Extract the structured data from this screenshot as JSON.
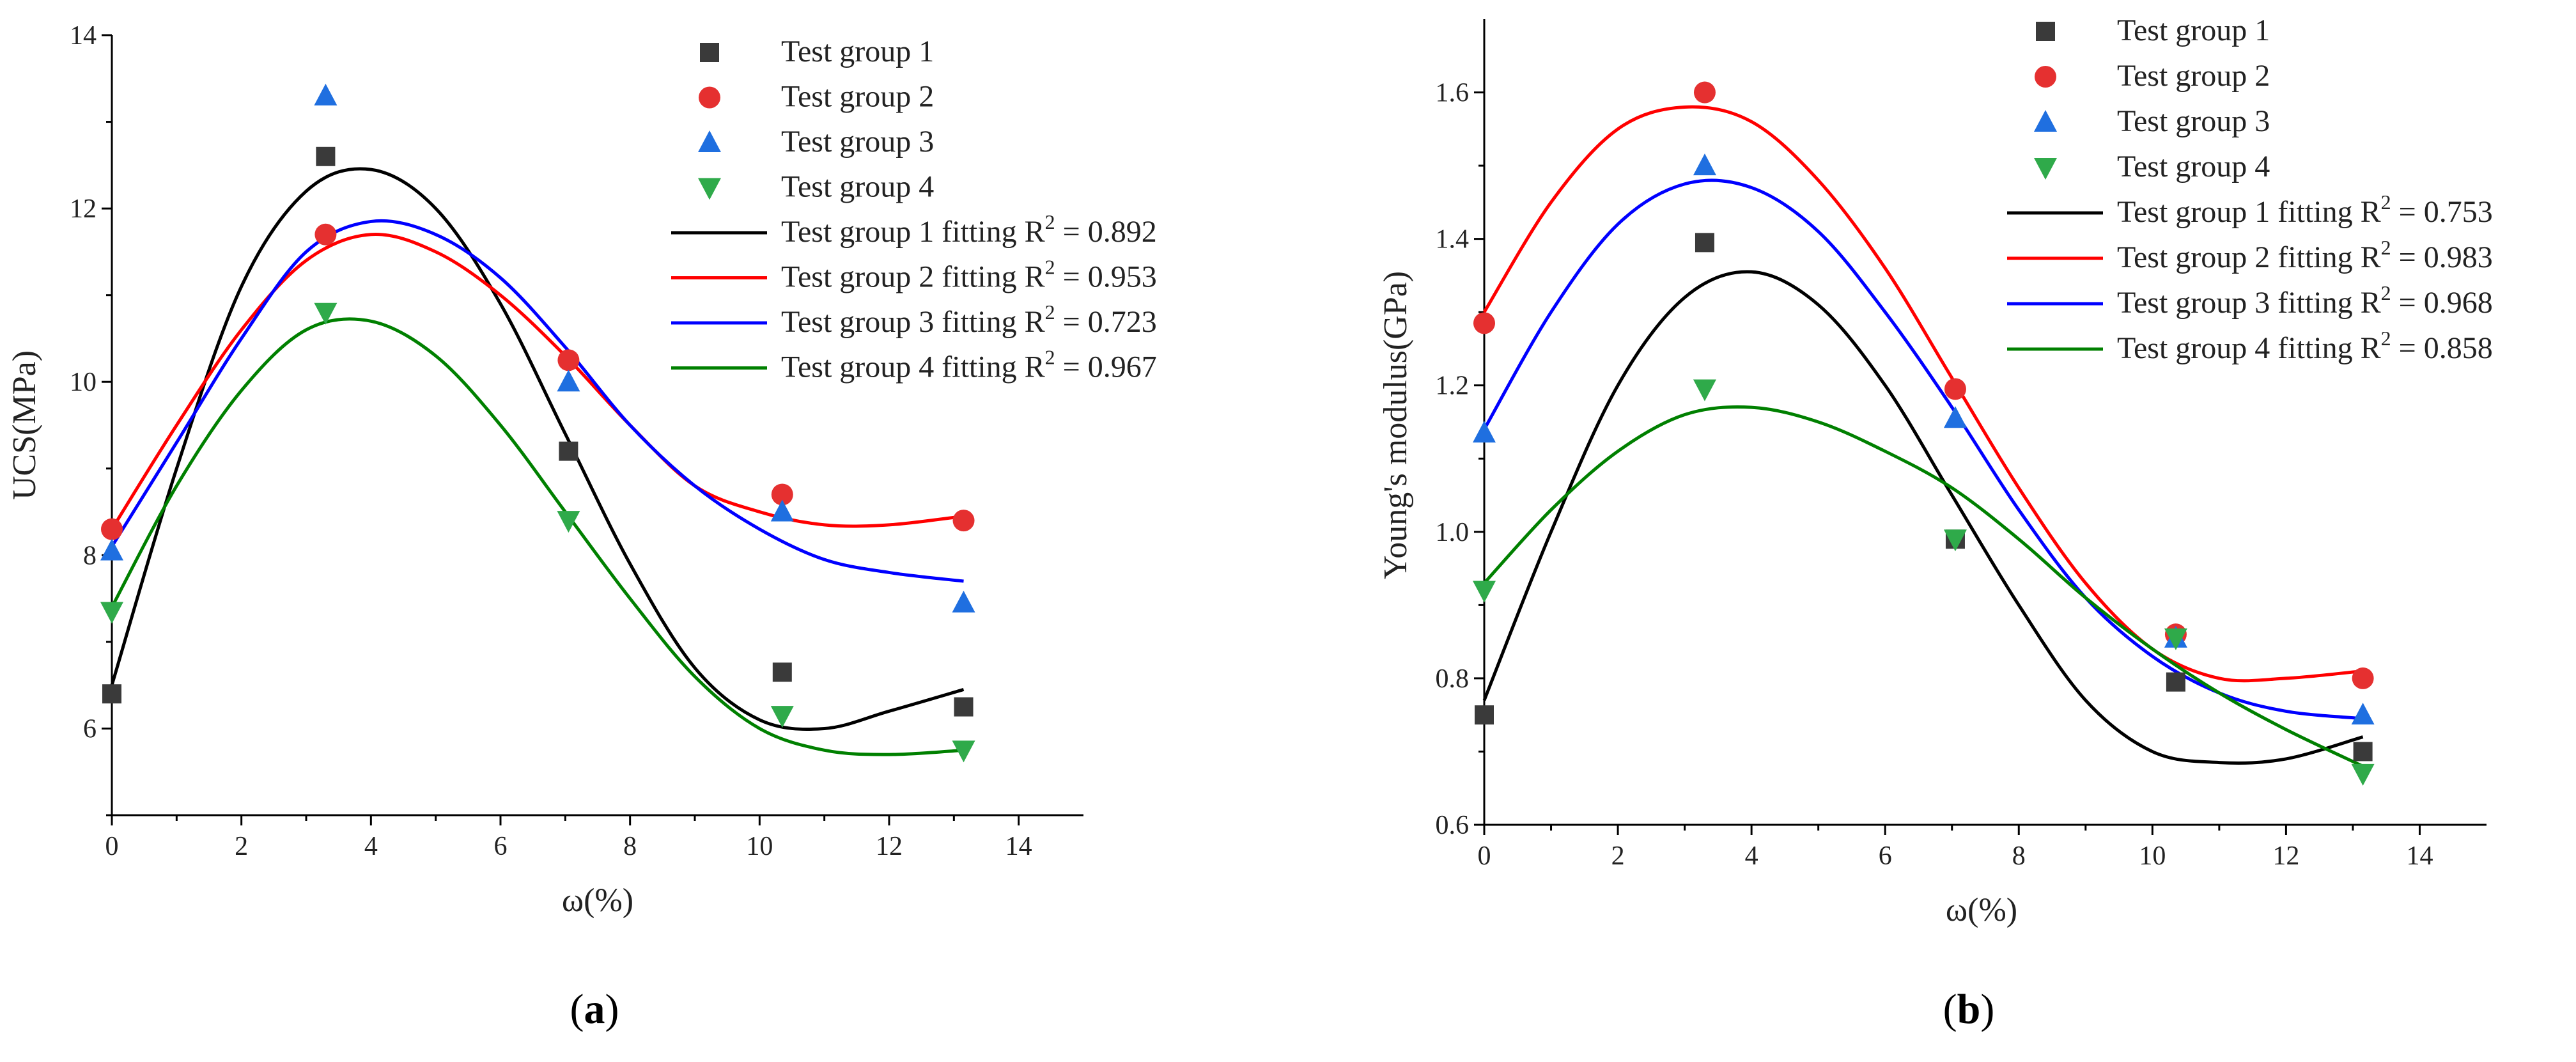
{
  "colors": {
    "g1": "#3a3a3a",
    "g2": "#e53030",
    "g3": "#1f6fe0",
    "g4": "#2faa4a",
    "fit1": "#000000",
    "fit2": "#ff0000",
    "fit3": "#0000ff",
    "fit4": "#008000"
  },
  "chart_data": [
    {
      "type": "scatter",
      "panel": "a",
      "caption_open": "(",
      "caption_letter": "a",
      "caption_close": ")",
      "xlabel": "ω(%)",
      "ylabel": "UCS(MPa)",
      "xlim": [
        0,
        15
      ],
      "ylim": [
        5,
        14
      ],
      "xticks": [
        0,
        2,
        4,
        6,
        8,
        10,
        12,
        14
      ],
      "yticks": [
        6,
        8,
        10,
        12,
        14
      ],
      "legend_position": "top-right",
      "series": [
        {
          "name": "Test group 1",
          "marker": "square",
          "color_key": "g1",
          "x": [
            0,
            3.3,
            7.05,
            10.35,
            13.15
          ],
          "y": [
            6.4,
            12.6,
            9.2,
            6.65,
            6.25
          ]
        },
        {
          "name": "Test group 2",
          "marker": "circle",
          "color_key": "g2",
          "x": [
            0,
            3.3,
            7.05,
            10.35,
            13.15
          ],
          "y": [
            8.3,
            11.7,
            10.25,
            8.7,
            8.4
          ]
        },
        {
          "name": "Test group 3",
          "marker": "triangle-up",
          "color_key": "g3",
          "x": [
            0,
            3.3,
            7.05,
            10.35,
            13.15
          ],
          "y": [
            8.05,
            13.3,
            10.0,
            8.5,
            7.45
          ]
        },
        {
          "name": "Test group 4",
          "marker": "triangle-down",
          "color_key": "g4",
          "x": [
            0,
            3.3,
            7.05,
            10.35,
            13.15
          ],
          "y": [
            7.35,
            10.8,
            8.4,
            6.15,
            5.75
          ]
        }
      ],
      "fits": [
        {
          "name_prefix": "Test group 1 fitting R",
          "name_suffix": " = 0.892",
          "r2": "0.892",
          "color_key": "fit1",
          "x": [
            0,
            1,
            2,
            3,
            4,
            5,
            6,
            7,
            8,
            9,
            10,
            11,
            12,
            13.15
          ],
          "y": [
            6.5,
            9.0,
            11.1,
            12.2,
            12.45,
            12.0,
            10.9,
            9.4,
            7.9,
            6.7,
            6.1,
            6.0,
            6.2,
            6.45
          ]
        },
        {
          "name_prefix": "Test group 2 fitting R",
          "name_suffix": " = 0.953",
          "r2": "0.953",
          "color_key": "fit2",
          "x": [
            0,
            1,
            2,
            3,
            4,
            5,
            6,
            7,
            8,
            9,
            10,
            11,
            12,
            13.15
          ],
          "y": [
            8.3,
            9.5,
            10.6,
            11.4,
            11.7,
            11.5,
            11.0,
            10.3,
            9.5,
            8.8,
            8.5,
            8.35,
            8.35,
            8.45
          ]
        },
        {
          "name_prefix": "Test group 3 fitting R",
          "name_suffix": " = 0.723",
          "r2": "0.723",
          "color_key": "fit3",
          "x": [
            0,
            1,
            2,
            3,
            4,
            5,
            6,
            7,
            8,
            9,
            10,
            11,
            12,
            13.15
          ],
          "y": [
            8.1,
            9.3,
            10.5,
            11.5,
            11.85,
            11.7,
            11.2,
            10.4,
            9.5,
            8.8,
            8.3,
            7.95,
            7.8,
            7.7
          ]
        },
        {
          "name_prefix": "Test group 4 fitting R",
          "name_suffix": " = 0.967",
          "r2": "0.967",
          "color_key": "fit4",
          "x": [
            0,
            1,
            2,
            3,
            4,
            5,
            6,
            7,
            8,
            9,
            10,
            11,
            12,
            13.15
          ],
          "y": [
            7.4,
            8.8,
            9.9,
            10.6,
            10.7,
            10.3,
            9.5,
            8.5,
            7.5,
            6.6,
            6.0,
            5.75,
            5.7,
            5.75
          ]
        }
      ]
    },
    {
      "type": "scatter",
      "panel": "b",
      "caption_open": "(",
      "caption_letter": "b",
      "caption_close": ")",
      "xlabel": "ω(%)",
      "ylabel": "Young's modulus(GPa)",
      "xlim": [
        0,
        15
      ],
      "ylim": [
        0.6,
        1.7
      ],
      "xticks": [
        0,
        2,
        4,
        6,
        8,
        10,
        12,
        14
      ],
      "yticks": [
        0.6,
        0.8,
        1.0,
        1.2,
        1.4,
        1.6
      ],
      "ytick_labels": [
        "0.6",
        "0.8",
        "1.0",
        "1.2",
        "1.4",
        "1.6"
      ],
      "legend_position": "top-right",
      "series": [
        {
          "name": "Test group 1",
          "marker": "square",
          "color_key": "g1",
          "x": [
            0,
            3.3,
            7.05,
            10.35,
            13.15
          ],
          "y": [
            0.75,
            1.395,
            0.99,
            0.795,
            0.7
          ]
        },
        {
          "name": "Test group 2",
          "marker": "circle",
          "color_key": "g2",
          "x": [
            0,
            3.3,
            7.05,
            10.35,
            13.15
          ],
          "y": [
            1.285,
            1.6,
            1.195,
            0.86,
            0.8
          ]
        },
        {
          "name": "Test group 3",
          "marker": "triangle-up",
          "color_key": "g3",
          "x": [
            0,
            3.3,
            7.05,
            10.35,
            13.15
          ],
          "y": [
            1.135,
            1.5,
            1.155,
            0.855,
            0.75
          ]
        },
        {
          "name": "Test group 4",
          "marker": "triangle-down",
          "color_key": "g4",
          "x": [
            0,
            3.3,
            7.05,
            10.35,
            13.15
          ],
          "y": [
            0.92,
            1.195,
            0.99,
            0.855,
            0.67
          ]
        }
      ],
      "fits": [
        {
          "name_prefix": "Test group 1 fitting R",
          "name_suffix": " = 0.753",
          "r2": "0.753",
          "color_key": "fit1",
          "x": [
            0,
            1,
            2,
            3,
            4,
            5,
            6,
            7,
            8,
            9,
            10,
            11,
            12,
            13.15
          ],
          "y": [
            0.77,
            1.0,
            1.2,
            1.32,
            1.355,
            1.31,
            1.2,
            1.05,
            0.9,
            0.77,
            0.7,
            0.685,
            0.69,
            0.72
          ]
        },
        {
          "name_prefix": "Test group 2 fitting R",
          "name_suffix": " = 0.983",
          "r2": "0.983",
          "color_key": "fit2",
          "x": [
            0,
            1,
            2,
            3,
            4,
            5,
            6,
            7,
            8,
            9,
            10,
            11,
            12,
            13.15
          ],
          "y": [
            1.3,
            1.45,
            1.55,
            1.58,
            1.56,
            1.48,
            1.36,
            1.21,
            1.06,
            0.93,
            0.84,
            0.8,
            0.8,
            0.81
          ]
        },
        {
          "name_prefix": "Test group 3 fitting R",
          "name_suffix": " = 0.968",
          "r2": "0.968",
          "color_key": "fit3",
          "x": [
            0,
            1,
            2,
            3,
            4,
            5,
            6,
            7,
            8,
            9,
            10,
            11,
            12,
            13.15
          ],
          "y": [
            1.14,
            1.3,
            1.42,
            1.475,
            1.47,
            1.41,
            1.3,
            1.17,
            1.03,
            0.91,
            0.83,
            0.78,
            0.755,
            0.745
          ]
        },
        {
          "name_prefix": "Test group 4 fitting R",
          "name_suffix": " = 0.858",
          "r2": "0.858",
          "color_key": "fit4",
          "x": [
            0,
            1,
            2,
            3,
            4,
            5,
            6,
            7,
            8,
            9,
            10,
            11,
            12,
            13.15
          ],
          "y": [
            0.93,
            1.03,
            1.11,
            1.16,
            1.17,
            1.15,
            1.11,
            1.06,
            0.99,
            0.91,
            0.84,
            0.78,
            0.73,
            0.68
          ]
        }
      ]
    }
  ]
}
